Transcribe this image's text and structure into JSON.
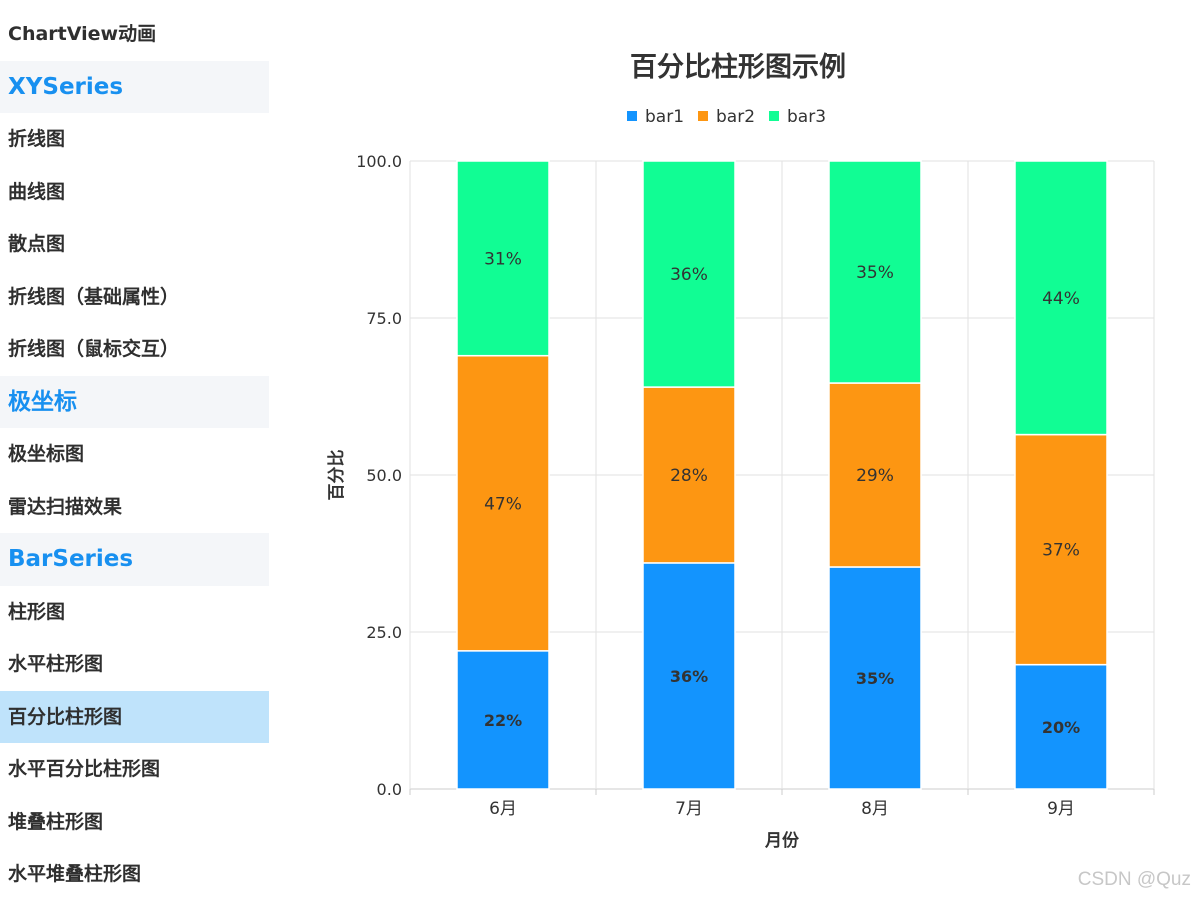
{
  "sidebar": {
    "items": [
      {
        "label": "ChartView动画",
        "type": "item"
      },
      {
        "label": "XYSeries",
        "type": "group"
      },
      {
        "label": "折线图",
        "type": "item"
      },
      {
        "label": "曲线图",
        "type": "item"
      },
      {
        "label": "散点图",
        "type": "item"
      },
      {
        "label": "折线图（基础属性）",
        "type": "item"
      },
      {
        "label": "折线图（鼠标交互）",
        "type": "item"
      },
      {
        "label": "极坐标",
        "type": "group"
      },
      {
        "label": "极坐标图",
        "type": "item"
      },
      {
        "label": "雷达扫描效果",
        "type": "item"
      },
      {
        "label": "BarSeries",
        "type": "group"
      },
      {
        "label": "柱形图",
        "type": "item"
      },
      {
        "label": "水平柱形图",
        "type": "item"
      },
      {
        "label": "百分比柱形图",
        "type": "item",
        "selected": true
      },
      {
        "label": "水平百分比柱形图",
        "type": "item"
      },
      {
        "label": "堆叠柱形图",
        "type": "item"
      },
      {
        "label": "水平堆叠柱形图",
        "type": "item"
      }
    ]
  },
  "chart_data": {
    "type": "bar",
    "stacked": "percent",
    "title": "百分比柱形图示例",
    "xlabel": "月份",
    "ylabel": "百分比",
    "categories": [
      "6月",
      "7月",
      "8月",
      "9月"
    ],
    "series": [
      {
        "name": "bar1",
        "color": "#1394fe",
        "values": [
          22,
          36,
          35,
          20
        ],
        "labels": [
          "22%",
          "36%",
          "35%",
          "20%"
        ]
      },
      {
        "name": "bar2",
        "color": "#fd9612",
        "values": [
          47,
          28,
          29,
          37
        ],
        "labels": [
          "47%",
          "28%",
          "29%",
          "37%"
        ]
      },
      {
        "name": "bar3",
        "color": "#11fd94",
        "values": [
          31,
          36,
          35,
          44
        ],
        "labels": [
          "31%",
          "36%",
          "35%",
          "44%"
        ]
      }
    ],
    "ylim": [
      0,
      100
    ],
    "yticks": [
      "0.0",
      "25.0",
      "50.0",
      "75.0",
      "100.0"
    ],
    "grid": true,
    "legend_position": "top"
  },
  "watermark": "CSDN @Quz"
}
